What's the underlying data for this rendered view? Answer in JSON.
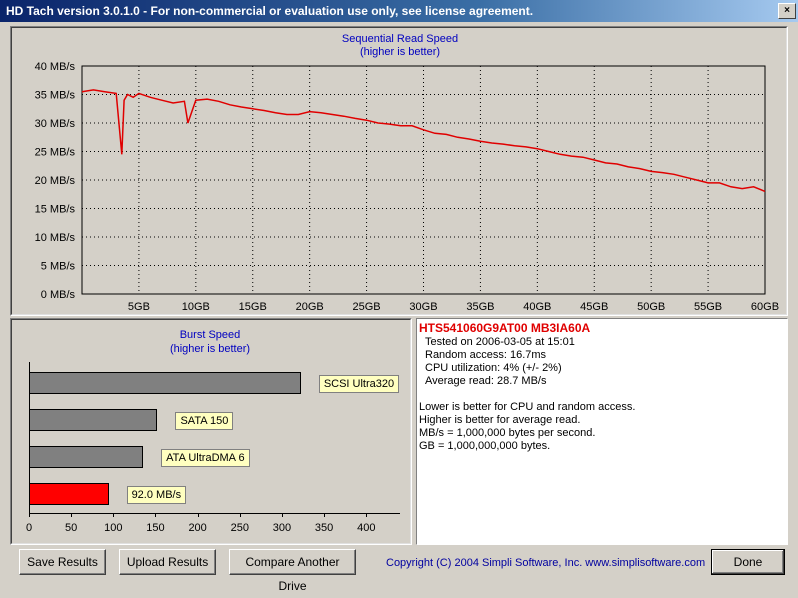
{
  "window": {
    "title": "HD Tach version 3.0.1.0  - For non-commercial or evaluation use only, see license agreement.",
    "close_glyph": "×"
  },
  "sequential": {
    "title_line1": "Sequential Read Speed",
    "title_line2": "(higher is better)"
  },
  "burst": {
    "title_line1": "Burst Speed",
    "title_line2": "(higher is better)"
  },
  "info": {
    "drive_name": "HTS541060G9AT00 MB3IA60A",
    "tested_on": "Tested on 2006-03-05 at 15:01",
    "random_access": "Random access: 16.7ms",
    "cpu_utilization": "CPU utilization: 4% (+/- 2%)",
    "average_read": "Average read: 28.7 MB/s",
    "note1": "Lower is better for CPU and random access.",
    "note2": "Higher is better for average read.",
    "note3": "MB/s = 1,000,000 bytes per second.",
    "note4": "GB = 1,000,000,000 bytes."
  },
  "buttons": {
    "save": "Save Results",
    "upload": "Upload Results",
    "compare": "Compare Another Drive",
    "done": "Done"
  },
  "copyright": "Copyright (C) 2004 Simpli Software, Inc. www.simplisoftware.com",
  "chart_data": [
    {
      "type": "line",
      "title": "Sequential Read Speed",
      "subtitle": "(higher is better)",
      "ylabel_ticks": [
        "0 MB/s",
        "5 MB/s",
        "10 MB/s",
        "15 MB/s",
        "20 MB/s",
        "25 MB/s",
        "30 MB/s",
        "35 MB/s",
        "40 MB/s"
      ],
      "xlabel_ticks": [
        "5GB",
        "10GB",
        "15GB",
        "20GB",
        "25GB",
        "30GB",
        "35GB",
        "40GB",
        "45GB",
        "50GB",
        "55GB",
        "60GB"
      ],
      "ylim": [
        0,
        40
      ],
      "xlim": [
        0,
        60
      ],
      "grid": true,
      "line_color": "#e00000",
      "series": [
        {
          "x": [
            0,
            1,
            2,
            3,
            3.5,
            3.7,
            4,
            4.5,
            5,
            6,
            7,
            8,
            9,
            9.3,
            10,
            11,
            12,
            13,
            14,
            15,
            16,
            17,
            18,
            19,
            20,
            21,
            22,
            23,
            24,
            25,
            26,
            27,
            28,
            29,
            30,
            31,
            32,
            33,
            34,
            35,
            36,
            37,
            38,
            39,
            40,
            41,
            42,
            43,
            44,
            45,
            46,
            47,
            48,
            49,
            50,
            51,
            52,
            53,
            54,
            55,
            56,
            57,
            58,
            59,
            60
          ],
          "y": [
            35.5,
            35.8,
            35.5,
            35.2,
            24.5,
            34,
            35,
            34.5,
            35.2,
            34.5,
            34,
            33.5,
            33.8,
            30,
            34,
            34.2,
            33.8,
            33.2,
            32.8,
            32.5,
            32.2,
            31.8,
            31.5,
            31.5,
            32,
            31.8,
            31.5,
            31.2,
            30.8,
            30.5,
            30,
            29.8,
            29.5,
            29.5,
            28.8,
            28.2,
            28,
            27.5,
            27.2,
            26.8,
            26.5,
            26.3,
            26,
            25.8,
            25.5,
            25,
            24.5,
            24.2,
            24,
            23.5,
            23,
            22.8,
            22.3,
            22,
            21.5,
            21.3,
            21,
            20.5,
            20,
            19.5,
            19.5,
            18.8,
            18.5,
            18.8,
            18.0
          ]
        }
      ]
    },
    {
      "type": "bar",
      "title": "Burst Speed",
      "subtitle": "(higher is better)",
      "orientation": "horizontal",
      "xlim": [
        0,
        440
      ],
      "xlabel_ticks": [
        "0",
        "50",
        "100",
        "150",
        "200",
        "250",
        "300",
        "350",
        "400"
      ],
      "categories": [
        "SCSI Ultra320",
        "SATA 150",
        "ATA UltraDMA 6",
        "92.0 MB/s"
      ],
      "values": [
        320,
        150,
        133,
        92
      ],
      "colors": [
        "#808080",
        "#808080",
        "#808080",
        "#ff0000"
      ]
    }
  ]
}
